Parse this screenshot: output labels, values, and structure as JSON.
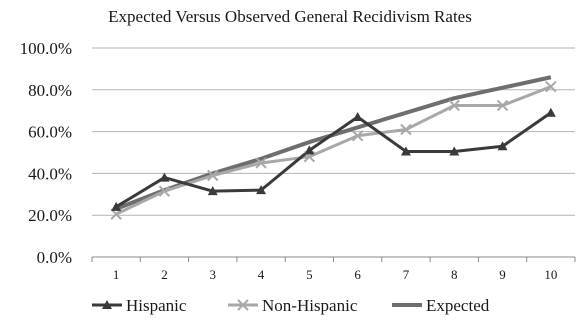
{
  "chart_data": {
    "type": "line",
    "title": "Expected Versus Observed General Recidivism Rates",
    "xlabel": "",
    "ylabel": "",
    "categories": [
      "1",
      "2",
      "3",
      "4",
      "5",
      "6",
      "7",
      "8",
      "9",
      "10"
    ],
    "yticks": [
      "0.0%",
      "20.0%",
      "40.0%",
      "60.0%",
      "80.0%",
      "100.0%"
    ],
    "ylim": [
      0,
      100
    ],
    "grid": true,
    "legend_position": "bottom",
    "series": [
      {
        "name": "Hispanic",
        "values": [
          24,
          38,
          31.5,
          32,
          51,
          67,
          50.5,
          50.5,
          53,
          69
        ],
        "color": "#3a3a3a",
        "marker": "triangle"
      },
      {
        "name": "Non-Hispanic",
        "values": [
          20.5,
          31.5,
          39,
          45,
          48,
          58,
          61,
          72.5,
          72.5,
          81.5
        ],
        "color": "#a8a8a8",
        "marker": "x"
      },
      {
        "name": "Expected",
        "values": [
          23,
          32,
          40,
          47,
          55,
          62,
          69,
          76,
          81,
          86
        ],
        "color": "#6e6e6e",
        "marker": "none"
      }
    ]
  }
}
